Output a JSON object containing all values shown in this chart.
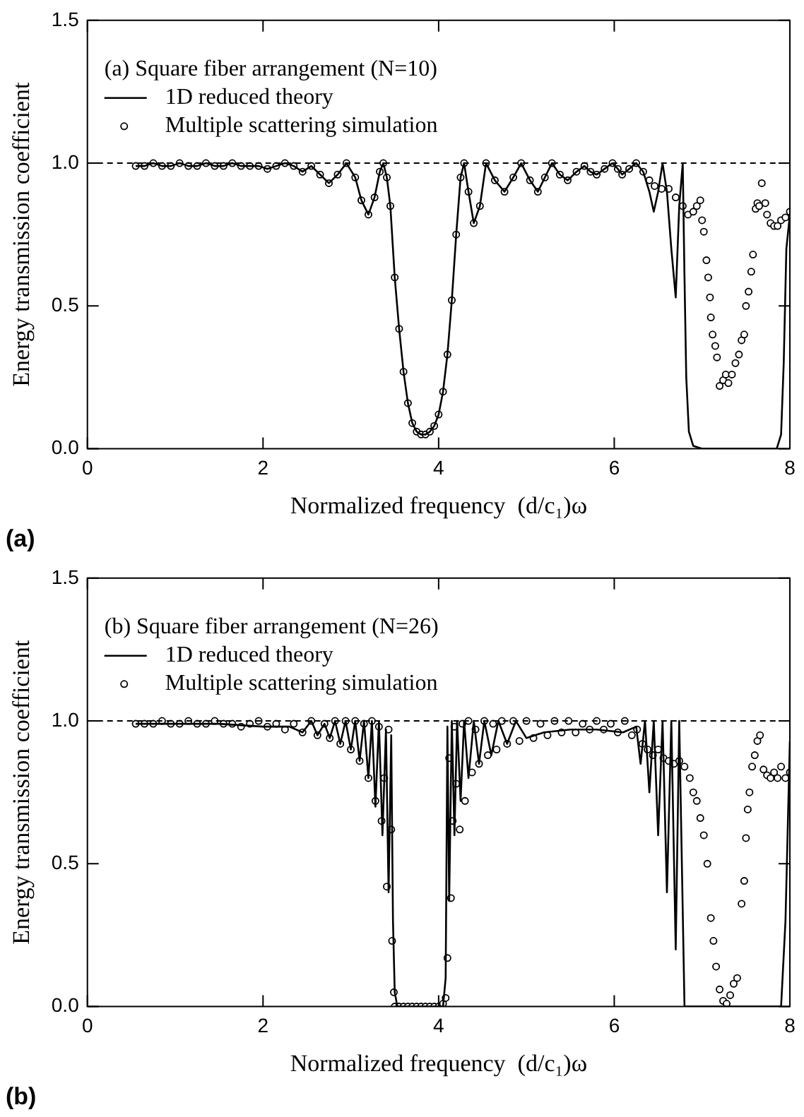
{
  "chart_data": [
    {
      "type": "line",
      "title": "(a) Square fiber arrangement (N=10)",
      "xlabel": "Normalized frequency  (d/c₁)ω",
      "ylabel": "Energy transmission coefficient",
      "annotations": [
        "(a)"
      ],
      "legend": "top left",
      "xlim": [
        0,
        8
      ],
      "xticks": [
        0,
        2,
        4,
        6,
        8
      ],
      "ylim": [
        0,
        1.5
      ],
      "yticks": [
        {
          "value": 0,
          "label": "0.0"
        },
        {
          "value": 0.5,
          "label": "0.5"
        },
        {
          "value": 1,
          "label": "1.0"
        },
        {
          "value": 1.5,
          "label": "1.5"
        }
      ],
      "ref_lines": [
        {
          "axis": "y",
          "value": 1,
          "line_style": "dashed",
          "color": "#000000"
        }
      ],
      "series": [
        {
          "name": "1D reduced theory",
          "type": "line",
          "marker": "none",
          "color": "#000000",
          "x": [
            0.55,
            0.65,
            0.75,
            0.85,
            0.95,
            1.05,
            1.15,
            1.25,
            1.35,
            1.45,
            1.55,
            1.65,
            1.75,
            1.85,
            1.95,
            2.05,
            2.15,
            2.25,
            2.35,
            2.45,
            2.55,
            2.65,
            2.75,
            2.85,
            2.95,
            3.05,
            3.12,
            3.2,
            3.27,
            3.33,
            3.37,
            3.41,
            3.45,
            3.5,
            3.55,
            3.6,
            3.65,
            3.7,
            3.75,
            3.8,
            3.85,
            3.9,
            3.95,
            4.0,
            4.05,
            4.1,
            4.15,
            4.2,
            4.25,
            4.29,
            4.34,
            4.4,
            4.47,
            4.54,
            4.64,
            4.75,
            4.85,
            4.94,
            5.04,
            5.13,
            5.21,
            5.29,
            5.38,
            5.47,
            5.57,
            5.66,
            5.73,
            5.8,
            5.89,
            5.98,
            6.04,
            6.09,
            6.17,
            6.25,
            6.33,
            6.4,
            6.45,
            6.5,
            6.55,
            6.6,
            6.65,
            6.7,
            6.74,
            6.78,
            6.8,
            6.82,
            6.85,
            6.9,
            7.0,
            7.5,
            7.85,
            7.9,
            7.93,
            7.96,
            8.0
          ],
          "values": [
            0.99,
            0.99,
            1.0,
            0.99,
            0.99,
            1.0,
            0.99,
            0.99,
            1.0,
            0.99,
            0.99,
            1.0,
            0.99,
            0.99,
            0.99,
            0.98,
            0.99,
            1.0,
            0.99,
            0.97,
            0.99,
            0.96,
            0.93,
            0.96,
            1.0,
            0.95,
            0.87,
            0.82,
            0.88,
            0.97,
            1.0,
            0.95,
            0.85,
            0.6,
            0.42,
            0.27,
            0.16,
            0.09,
            0.06,
            0.05,
            0.05,
            0.06,
            0.08,
            0.12,
            0.2,
            0.33,
            0.52,
            0.75,
            0.95,
            1.0,
            0.9,
            0.79,
            0.85,
            1.0,
            0.94,
            0.9,
            0.95,
            1.0,
            0.94,
            0.9,
            0.95,
            1.0,
            0.96,
            0.94,
            0.97,
            0.99,
            0.97,
            0.96,
            0.98,
            1.0,
            0.98,
            0.96,
            0.98,
            1.0,
            0.97,
            0.9,
            0.83,
            0.9,
            1.0,
            0.9,
            0.7,
            0.53,
            0.85,
            1.0,
            0.6,
            0.25,
            0.06,
            0.01,
            0,
            0,
            0,
            0.05,
            0.3,
            0.7,
            0.82
          ]
        },
        {
          "name": "Multiple scattering simulation",
          "type": "scatter",
          "marker": "circle",
          "color": "#000000",
          "x": [
            0.55,
            0.65,
            0.75,
            0.85,
            0.95,
            1.05,
            1.15,
            1.25,
            1.35,
            1.45,
            1.55,
            1.65,
            1.75,
            1.85,
            1.95,
            2.05,
            2.15,
            2.25,
            2.35,
            2.45,
            2.55,
            2.65,
            2.75,
            2.85,
            2.95,
            3.05,
            3.12,
            3.2,
            3.27,
            3.33,
            3.37,
            3.41,
            3.45,
            3.5,
            3.55,
            3.6,
            3.65,
            3.7,
            3.75,
            3.8,
            3.85,
            3.9,
            3.95,
            4.0,
            4.05,
            4.1,
            4.15,
            4.2,
            4.25,
            4.29,
            4.34,
            4.4,
            4.47,
            4.54,
            4.64,
            4.75,
            4.85,
            4.94,
            5.04,
            5.13,
            5.21,
            5.29,
            5.38,
            5.47,
            5.57,
            5.66,
            5.73,
            5.8,
            5.89,
            5.98,
            6.04,
            6.09,
            6.17,
            6.25,
            6.33,
            6.4,
            6.46,
            6.54,
            6.62,
            6.7,
            6.78,
            6.84,
            6.9,
            6.94,
            6.98,
            7.0,
            7.02,
            7.05,
            7.07,
            7.09,
            7.1,
            7.12,
            7.15,
            7.17,
            7.2,
            7.24,
            7.27,
            7.3,
            7.34,
            7.38,
            7.42,
            7.45,
            7.48,
            7.5,
            7.53,
            7.56,
            7.58,
            7.61,
            7.63,
            7.65,
            7.68,
            7.72,
            7.74,
            7.78,
            7.82,
            7.86,
            7.9,
            7.95,
            8.0
          ],
          "values": [
            0.99,
            0.99,
            1.0,
            0.99,
            0.99,
            1.0,
            0.99,
            0.99,
            1.0,
            0.99,
            0.99,
            1.0,
            0.99,
            0.99,
            0.99,
            0.98,
            0.99,
            1.0,
            0.99,
            0.97,
            0.99,
            0.96,
            0.93,
            0.96,
            1.0,
            0.95,
            0.87,
            0.82,
            0.88,
            0.97,
            1.0,
            0.95,
            0.85,
            0.6,
            0.42,
            0.27,
            0.16,
            0.09,
            0.06,
            0.05,
            0.05,
            0.06,
            0.08,
            0.12,
            0.2,
            0.33,
            0.52,
            0.75,
            0.95,
            1.0,
            0.9,
            0.79,
            0.85,
            1.0,
            0.94,
            0.9,
            0.95,
            1.0,
            0.94,
            0.9,
            0.95,
            1.0,
            0.96,
            0.94,
            0.97,
            0.99,
            0.97,
            0.96,
            0.98,
            1.0,
            0.98,
            0.96,
            0.98,
            1.0,
            0.97,
            0.94,
            0.92,
            0.91,
            0.91,
            0.88,
            0.85,
            0.82,
            0.83,
            0.85,
            0.87,
            0.8,
            0.76,
            0.66,
            0.6,
            0.53,
            0.46,
            0.4,
            0.36,
            0.32,
            0.22,
            0.24,
            0.26,
            0.23,
            0.26,
            0.3,
            0.33,
            0.38,
            0.4,
            0.5,
            0.55,
            0.62,
            0.68,
            0.84,
            0.86,
            0.85,
            0.93,
            0.86,
            0.82,
            0.79,
            0.78,
            0.78,
            0.8,
            0.81,
            0.83
          ]
        }
      ]
    },
    {
      "type": "line",
      "title": "(b) Square fiber arrangement (N=26)",
      "xlabel": "Normalized frequency  (d/c₁)ω",
      "ylabel": "Energy transmission coefficient",
      "annotations": [
        "(b)"
      ],
      "legend": "top left",
      "xlim": [
        0,
        8
      ],
      "xticks": [
        0,
        2,
        4,
        6,
        8
      ],
      "ylim": [
        0,
        1.5
      ],
      "yticks": [
        {
          "value": 0,
          "label": "0.0"
        },
        {
          "value": 0.5,
          "label": "0.5"
        },
        {
          "value": 1,
          "label": "1.0"
        },
        {
          "value": 1.5,
          "label": "1.5"
        }
      ],
      "ref_lines": [
        {
          "axis": "y",
          "value": 1,
          "line_style": "dashed",
          "color": "#000000"
        }
      ],
      "series": [
        {
          "name": "1D reduced theory",
          "type": "line",
          "marker": "none",
          "color": "#000000",
          "x": [
            0.55,
            1.0,
            1.5,
            2.0,
            2.3,
            2.45,
            2.55,
            2.62,
            2.7,
            2.76,
            2.82,
            2.88,
            2.94,
            3.0,
            3.05,
            3.1,
            3.15,
            3.2,
            3.24,
            3.28,
            3.32,
            3.36,
            3.4,
            3.43,
            3.46,
            3.48,
            3.5,
            3.53,
            4.05,
            4.08,
            4.1,
            4.12,
            4.15,
            4.18,
            4.21,
            4.25,
            4.29,
            4.34,
            4.4,
            4.46,
            4.52,
            4.6,
            4.68,
            4.78,
            4.88,
            5.0,
            5.2,
            5.5,
            5.8,
            6.1,
            6.25,
            6.3,
            6.35,
            6.4,
            6.45,
            6.5,
            6.55,
            6.6,
            6.65,
            6.7,
            6.74,
            6.8,
            6.82,
            7.9,
            7.95,
            8.0
          ],
          "values": [
            0.99,
            0.99,
            0.99,
            0.98,
            0.98,
            0.96,
            1.0,
            0.95,
            0.99,
            0.94,
            1.0,
            0.92,
            1.0,
            0.9,
            1.0,
            0.86,
            1.0,
            0.8,
            1.0,
            0.7,
            1.0,
            0.6,
            0.97,
            0.4,
            0.95,
            0.3,
            0.05,
            0,
            0,
            0.1,
            0.98,
            0.37,
            1.0,
            0.6,
            1.0,
            0.72,
            1.0,
            0.8,
            1.0,
            0.85,
            1.0,
            0.88,
            1.0,
            0.92,
            1.0,
            0.94,
            0.96,
            0.97,
            0.97,
            0.96,
            0.98,
            0.85,
            1.0,
            0.75,
            1.0,
            0.6,
            1.0,
            0.4,
            1.0,
            0.2,
            1.0,
            0,
            0,
            0,
            0.3,
            0.93
          ]
        },
        {
          "name": "Multiple scattering simulation",
          "type": "scatter",
          "marker": "circle",
          "color": "#000000",
          "x": [
            0.55,
            0.65,
            0.75,
            0.85,
            0.95,
            1.05,
            1.15,
            1.25,
            1.35,
            1.45,
            1.55,
            1.65,
            1.75,
            1.85,
            1.95,
            2.05,
            2.15,
            2.25,
            2.35,
            2.45,
            2.55,
            2.62,
            2.7,
            2.76,
            2.82,
            2.88,
            2.94,
            3.0,
            3.05,
            3.1,
            3.15,
            3.2,
            3.24,
            3.28,
            3.32,
            3.35,
            3.38,
            3.41,
            3.43,
            3.46,
            3.47,
            3.49,
            3.5,
            3.55,
            3.6,
            3.65,
            3.7,
            3.75,
            3.8,
            3.85,
            3.9,
            3.95,
            4.0,
            4.05,
            4.08,
            4.1,
            4.12,
            4.14,
            4.16,
            4.18,
            4.2,
            4.24,
            4.27,
            4.3,
            4.34,
            4.38,
            4.42,
            4.46,
            4.52,
            4.56,
            4.62,
            4.66,
            4.72,
            4.78,
            4.85,
            4.92,
            5.0,
            5.08,
            5.16,
            5.24,
            5.32,
            5.4,
            5.48,
            5.56,
            5.64,
            5.72,
            5.8,
            5.88,
            5.96,
            6.04,
            6.12,
            6.2,
            6.26,
            6.32,
            6.38,
            6.44,
            6.5,
            6.56,
            6.62,
            6.68,
            6.74,
            6.8,
            6.86,
            6.9,
            6.94,
            6.98,
            7.02,
            7.06,
            7.1,
            7.13,
            7.16,
            7.2,
            7.24,
            7.28,
            7.32,
            7.36,
            7.4,
            7.45,
            7.48,
            7.5,
            7.52,
            7.54,
            7.57,
            7.6,
            7.63,
            7.66,
            7.7,
            7.74,
            7.78,
            7.82,
            7.86,
            7.9,
            7.95,
            8.0
          ],
          "values": [
            0.99,
            0.99,
            0.99,
            1.0,
            0.99,
            0.99,
            1.0,
            0.99,
            0.99,
            1.0,
            0.99,
            0.99,
            0.98,
            0.99,
            1.0,
            0.98,
            0.99,
            0.97,
            0.99,
            0.96,
            1.0,
            0.95,
            0.99,
            0.94,
            1.0,
            0.92,
            1.0,
            0.9,
            1.0,
            0.86,
            0.99,
            0.8,
            1.0,
            0.72,
            0.98,
            0.65,
            0.8,
            0.42,
            0.97,
            0.62,
            0.23,
            0.05,
            0,
            0,
            0,
            0,
            0,
            0,
            0,
            0,
            0,
            0,
            0,
            0.01,
            0.03,
            0.17,
            0.87,
            0.38,
            0.65,
            0.98,
            0.78,
            0.62,
            0.99,
            0.72,
            1.0,
            0.82,
            0.97,
            0.85,
            1.0,
            0.88,
            0.99,
            0.9,
            1.0,
            0.92,
            1.0,
            0.93,
            1.0,
            0.94,
            0.99,
            0.95,
            1.0,
            0.96,
            1.0,
            0.96,
            0.99,
            0.97,
            1.0,
            0.97,
            0.99,
            0.96,
            1.0,
            0.95,
            0.97,
            0.92,
            0.9,
            0.88,
            0.9,
            0.87,
            0.86,
            0.85,
            0.86,
            0.84,
            0.8,
            0.75,
            0.72,
            0.66,
            0.6,
            0.5,
            0.31,
            0.23,
            0.14,
            0.06,
            0.02,
            0.01,
            0.04,
            0.08,
            0.1,
            0.36,
            0.44,
            0.59,
            0.69,
            0.75,
            0.84,
            0.88,
            0.93,
            0.95,
            0.83,
            0.81,
            0.8,
            0.82,
            0.8,
            0.84,
            0.8,
            0.82
          ]
        }
      ]
    }
  ]
}
